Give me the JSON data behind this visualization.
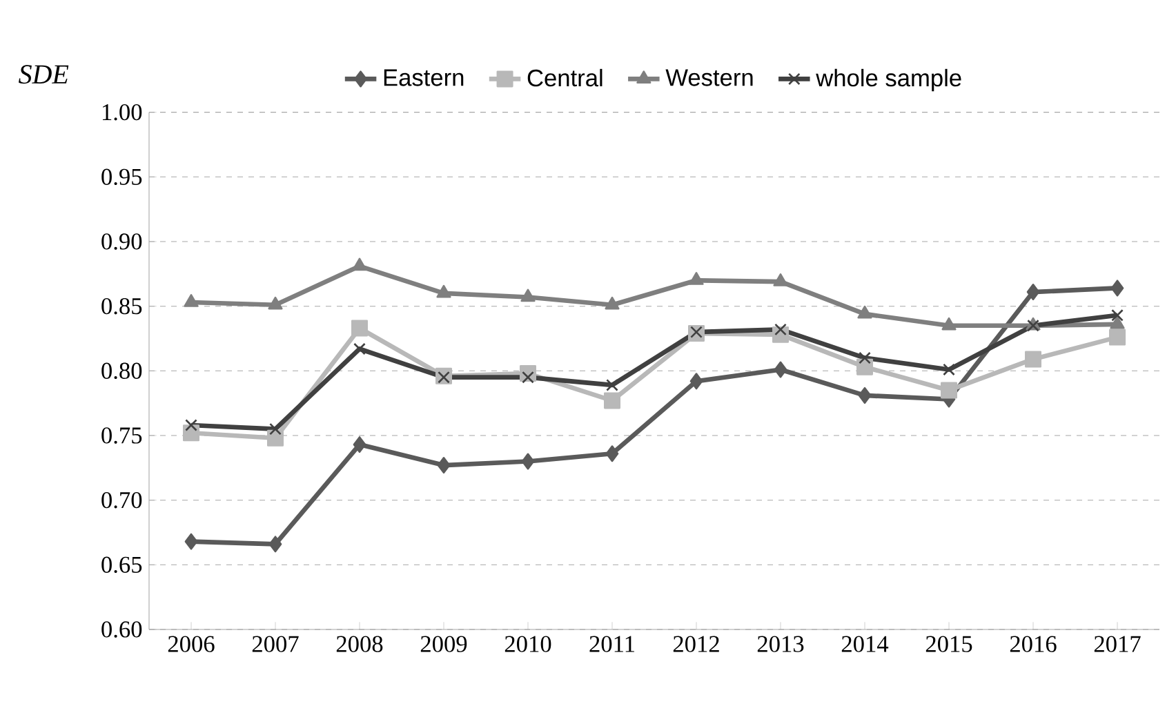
{
  "chart_data": {
    "type": "line",
    "ylabel": "SDE",
    "categories": [
      "2006",
      "2007",
      "2008",
      "2009",
      "2010",
      "2011",
      "2012",
      "2013",
      "2014",
      "2015",
      "2016",
      "2017"
    ],
    "series": [
      {
        "name": "Eastern",
        "color": "#5a5a5a",
        "marker": "diamond",
        "values": [
          0.668,
          0.666,
          0.743,
          0.727,
          0.73,
          0.736,
          0.792,
          0.801,
          0.781,
          0.778,
          0.861,
          0.864
        ]
      },
      {
        "name": "Central",
        "color": "#b8b8b8",
        "marker": "square",
        "values": [
          0.752,
          0.748,
          0.833,
          0.796,
          0.798,
          0.777,
          0.829,
          0.828,
          0.803,
          0.785,
          0.809,
          0.826
        ]
      },
      {
        "name": "Western",
        "color": "#7f7f7f",
        "marker": "triangle",
        "values": [
          0.853,
          0.851,
          0.881,
          0.86,
          0.857,
          0.851,
          0.87,
          0.869,
          0.844,
          0.835,
          0.835,
          0.836
        ]
      },
      {
        "name": "whole sample",
        "color": "#404040",
        "marker": "cross",
        "values": [
          0.758,
          0.755,
          0.817,
          0.795,
          0.795,
          0.789,
          0.83,
          0.832,
          0.81,
          0.801,
          0.835,
          0.843
        ]
      }
    ],
    "ylim": [
      0.6,
      1.0
    ],
    "yticks": [
      {
        "value": 0.6,
        "label": "0.60"
      },
      {
        "value": 0.65,
        "label": "0.65"
      },
      {
        "value": 0.7,
        "label": "0.70"
      },
      {
        "value": 0.75,
        "label": "0.75"
      },
      {
        "value": 0.8,
        "label": "0.80"
      },
      {
        "value": 0.85,
        "label": "0.85"
      },
      {
        "value": 0.9,
        "label": "0.90"
      },
      {
        "value": 0.95,
        "label": "0.95"
      },
      {
        "value": 1.0,
        "label": "1.00"
      }
    ],
    "grid": "y",
    "legend": "top",
    "line_style": "solid"
  }
}
